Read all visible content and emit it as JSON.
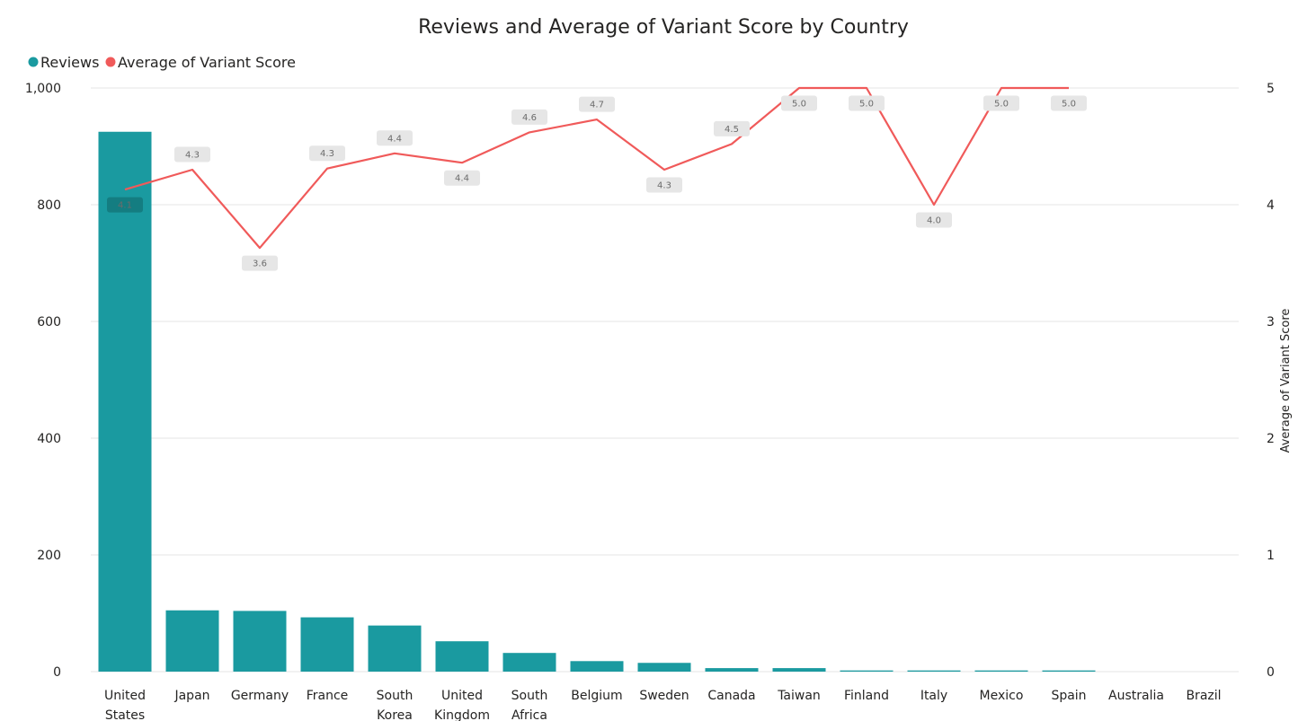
{
  "chart_data": {
    "type": "bar",
    "title": "Reviews and Average of Variant Score by Country",
    "legend": {
      "position": "top-left",
      "items": [
        {
          "name": "Reviews",
          "color": "#1a9aa0"
        },
        {
          "name": "Average of Variant Score",
          "color": "#f05a5a"
        }
      ]
    },
    "categories": [
      "United States",
      "Japan",
      "Germany",
      "France",
      "South Korea",
      "United Kingdom",
      "South Africa",
      "Belgium",
      "Sweden",
      "Canada",
      "Taiwan",
      "Finland",
      "Italy",
      "Mexico",
      "Spain",
      "Australia",
      "Brazil"
    ],
    "series": [
      {
        "name": "Reviews",
        "type": "bar",
        "axis": "left",
        "color": "#1a9aa0",
        "values": [
          925,
          105,
          104,
          93,
          79,
          52,
          32,
          18,
          15,
          6,
          6,
          2,
          2,
          2,
          2,
          0,
          0
        ]
      },
      {
        "name": "Average of Variant Score",
        "type": "line",
        "axis": "right",
        "color": "#f05a5a",
        "values": [
          4.1,
          4.3,
          3.6,
          4.3,
          4.4,
          4.4,
          4.6,
          4.7,
          4.3,
          4.5,
          5.0,
          5.0,
          4.0,
          5.0,
          5.0,
          null,
          null
        ],
        "plotted": [
          4.13,
          4.3,
          3.63,
          4.31,
          4.44,
          4.36,
          4.62,
          4.73,
          4.3,
          4.52,
          5.0,
          5.0,
          4.0,
          5.0,
          5.0,
          null,
          null
        ],
        "labels": [
          "4.1",
          "4.3",
          "3.6",
          "4.3",
          "4.4",
          "4.4",
          "4.6",
          "4.7",
          "4.3",
          "4.5",
          "5.0",
          "5.0",
          "4.0",
          "5.0",
          "5.0",
          "",
          ""
        ]
      }
    ],
    "y_left": {
      "min": 0,
      "max": 1000,
      "ticks": [
        "0",
        "200",
        "400",
        "600",
        "800",
        "1,000"
      ],
      "tick_values": [
        0,
        200,
        400,
        600,
        800,
        1000
      ],
      "label": ""
    },
    "y_right": {
      "min": 0,
      "max": 5,
      "ticks": [
        "0",
        "1",
        "2",
        "3",
        "4",
        "5"
      ],
      "tick_values": [
        0,
        1,
        2,
        3,
        4,
        5
      ],
      "label": "Average of Variant Score"
    },
    "grid": true
  }
}
